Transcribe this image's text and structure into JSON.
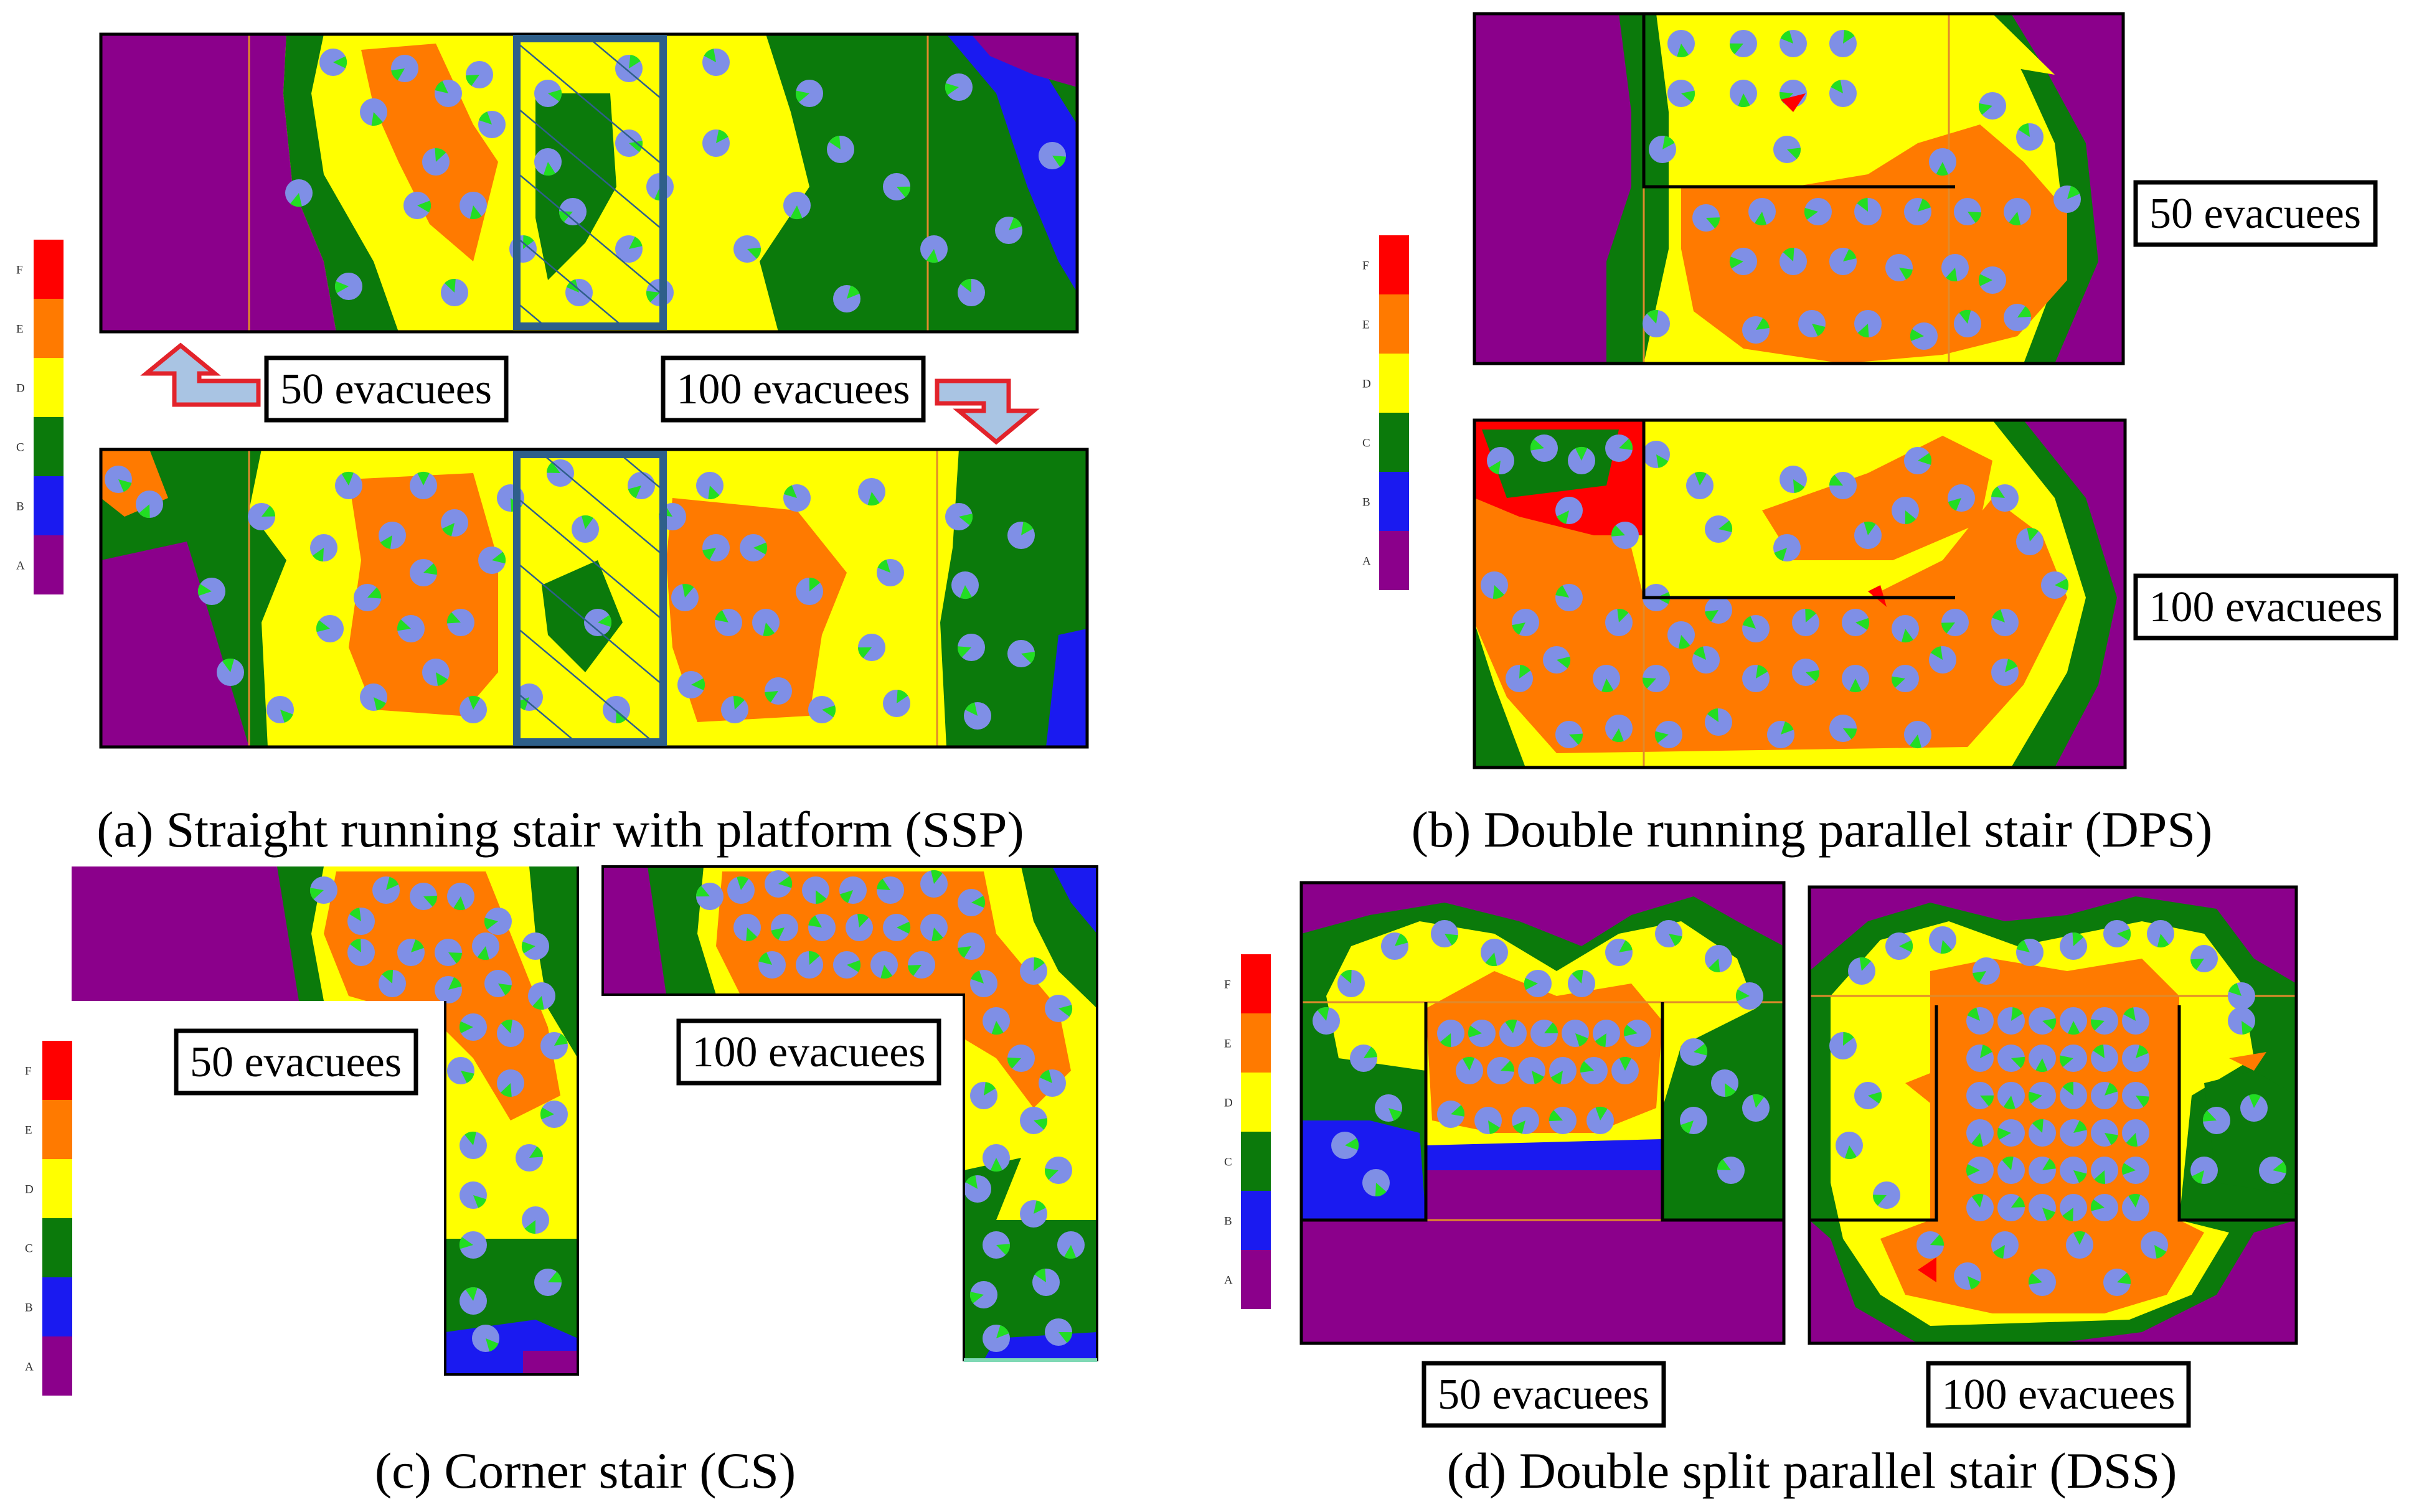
{
  "colors": {
    "A": "#8B008B",
    "B": "#1A1AF0",
    "C": "#0B7A0B",
    "D": "#FFFF00",
    "E": "#FF7A00",
    "F": "#FF0000",
    "agent": "#7F8FE6",
    "agent_mark": "#22DD22",
    "wall": "#000000",
    "hatch": "#2E5F8A",
    "arrow_fill": "#A9C4E3",
    "arrow_stroke": "#E2232B",
    "floor_line": "#E08A2C"
  },
  "scale": {
    "letters": [
      "F",
      "E",
      "D",
      "C",
      "B",
      "A"
    ]
  },
  "panels": {
    "ssp": {
      "caption": "(a) Straight running stair with platform (SSP)",
      "label_50": "50 evacuees",
      "label_100": "100 evacuees"
    },
    "dps": {
      "caption": "(b) Double running parallel stair (DPS)",
      "label_50": "50 evacuees",
      "label_100": "100 evacuees"
    },
    "cs": {
      "caption": "(c) Corner stair (CS)",
      "label_50": "50 evacuees",
      "label_100": "100 evacuees"
    },
    "dss": {
      "caption": "(d) Double split parallel stair (DSS)",
      "label_50": "50 evacuees",
      "label_100": "100 evacuees"
    }
  }
}
